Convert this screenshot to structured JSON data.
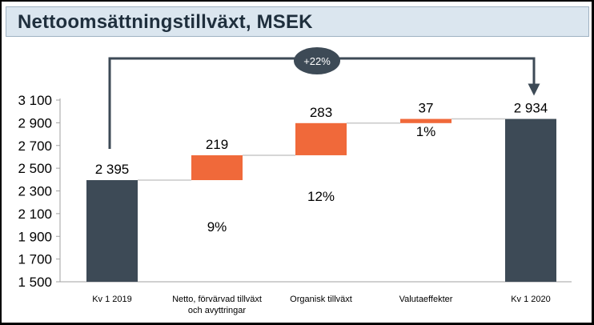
{
  "title": "Nettoomsättningstillväxt, MSEK",
  "colors": {
    "total": "#3d4a56",
    "delta": "#f0693a",
    "connector": "#c8c8c8",
    "bracket": "#3d4a56",
    "badge": "#3d4a56",
    "badge_text": "#ffffff"
  },
  "chart_data": {
    "type": "bar",
    "subtype": "waterfall",
    "title": "Nettoomsättningstillväxt, MSEK",
    "ylim": [
      1500,
      3100
    ],
    "yticks": [
      "3 100",
      "2 900",
      "2 700",
      "2 500",
      "2 300",
      "2 100",
      "1 900",
      "1 700",
      "1 500"
    ],
    "ytick_values": [
      3100,
      2900,
      2700,
      2500,
      2300,
      2100,
      1900,
      1700,
      1500
    ],
    "categories": [
      [
        "Kv 1 2019"
      ],
      [
        "Netto, förvärvad tillväxt",
        "och avyttringar"
      ],
      [
        "Organisk tillväxt"
      ],
      [
        "Valutaeffekter"
      ],
      [
        "Kv 1 2020"
      ]
    ],
    "bars": [
      {
        "kind": "total",
        "start": 1500,
        "end": 2395,
        "value_label": "2 395",
        "pct_label": ""
      },
      {
        "kind": "delta",
        "start": 2395,
        "end": 2614,
        "value_label": "219",
        "pct_label": "9%"
      },
      {
        "kind": "delta",
        "start": 2614,
        "end": 2897,
        "value_label": "283",
        "pct_label": "12%"
      },
      {
        "kind": "delta",
        "start": 2897,
        "end": 2934,
        "value_label": "37",
        "pct_label": "1%"
      },
      {
        "kind": "total",
        "start": 1500,
        "end": 2934,
        "value_label": "2 934",
        "pct_label": ""
      }
    ],
    "annotation": {
      "label": "+22%",
      "from_bar": 0,
      "to_bar": 4
    },
    "legend": "none",
    "grid": false
  }
}
